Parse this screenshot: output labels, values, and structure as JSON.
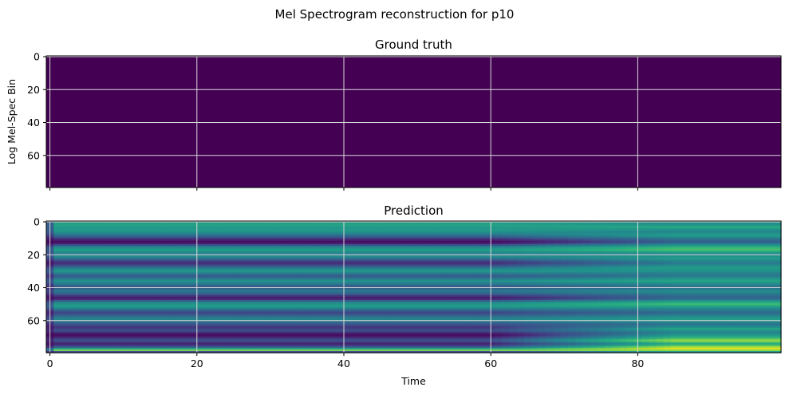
{
  "figure": {
    "suptitle": "Mel Spectrogram reconstruction for p10"
  },
  "colors": {
    "viridis_low": "#440154",
    "viridis_mid": "#21918c",
    "viridis_high": "#fde725",
    "grid": "#d9d9d9"
  },
  "chart_data": [
    {
      "type": "heatmap",
      "title": "Ground truth",
      "xlabel": "",
      "ylabel": "Log Mel-Spec Bin",
      "xlim": [
        -0.5,
        99.5
      ],
      "ylim": [
        79.5,
        -0.5
      ],
      "x_ticks": [
        0,
        20,
        40,
        60,
        80
      ],
      "y_ticks": [
        0,
        20,
        40,
        60
      ],
      "x_tick_labels_shown": false,
      "grid": true,
      "rows": 80,
      "cols": 100,
      "values": "all zeros (uniform minimum of colormap)",
      "colormap": "viridis"
    },
    {
      "type": "heatmap",
      "title": "Prediction",
      "xlabel": "Time",
      "ylabel": "",
      "xlim": [
        -0.5,
        99.5
      ],
      "ylim": [
        79.5,
        -0.5
      ],
      "x_ticks": [
        0,
        20,
        40,
        60,
        80
      ],
      "y_ticks": [
        0,
        20,
        40,
        60
      ],
      "x_tick_labels_shown": true,
      "grid": true,
      "rows": 80,
      "cols": 100,
      "colormap": "viridis",
      "row_profile_early": [
        0.62,
        0.55,
        0.58,
        0.55,
        0.52,
        0.55,
        0.5,
        0.45,
        0.38,
        0.3,
        0.2,
        0.12,
        0.05,
        0.1,
        0.25,
        0.4,
        0.5,
        0.55,
        0.5,
        0.45,
        0.42,
        0.48,
        0.4,
        0.3,
        0.2,
        0.15,
        0.2,
        0.3,
        0.4,
        0.48,
        0.52,
        0.45,
        0.35,
        0.3,
        0.35,
        0.45,
        0.5,
        0.45,
        0.38,
        0.3,
        0.28,
        0.35,
        0.4,
        0.35,
        0.28,
        0.18,
        0.1,
        0.15,
        0.3,
        0.45,
        0.52,
        0.55,
        0.5,
        0.4,
        0.3,
        0.22,
        0.25,
        0.32,
        0.4,
        0.45,
        0.42,
        0.35,
        0.28,
        0.22,
        0.18,
        0.2,
        0.25,
        0.18,
        0.08,
        0.05,
        0.12,
        0.2,
        0.25,
        0.2,
        0.12,
        0.18,
        0.3,
        0.55,
        0.8,
        0.25
      ],
      "row_profile_late": [
        0.55,
        0.48,
        0.52,
        0.62,
        0.55,
        0.5,
        0.45,
        0.5,
        0.55,
        0.5,
        0.42,
        0.35,
        0.3,
        0.38,
        0.5,
        0.6,
        0.68,
        0.7,
        0.62,
        0.5,
        0.45,
        0.5,
        0.55,
        0.5,
        0.45,
        0.4,
        0.45,
        0.52,
        0.55,
        0.52,
        0.5,
        0.45,
        0.4,
        0.42,
        0.48,
        0.55,
        0.58,
        0.52,
        0.45,
        0.4,
        0.38,
        0.42,
        0.48,
        0.45,
        0.4,
        0.35,
        0.32,
        0.38,
        0.5,
        0.62,
        0.68,
        0.62,
        0.52,
        0.45,
        0.4,
        0.35,
        0.38,
        0.45,
        0.5,
        0.55,
        0.52,
        0.45,
        0.4,
        0.42,
        0.5,
        0.58,
        0.52,
        0.45,
        0.48,
        0.55,
        0.62,
        0.72,
        0.85,
        0.75,
        0.62,
        0.7,
        0.88,
        0.95,
        0.85,
        0.55
      ]
    }
  ]
}
